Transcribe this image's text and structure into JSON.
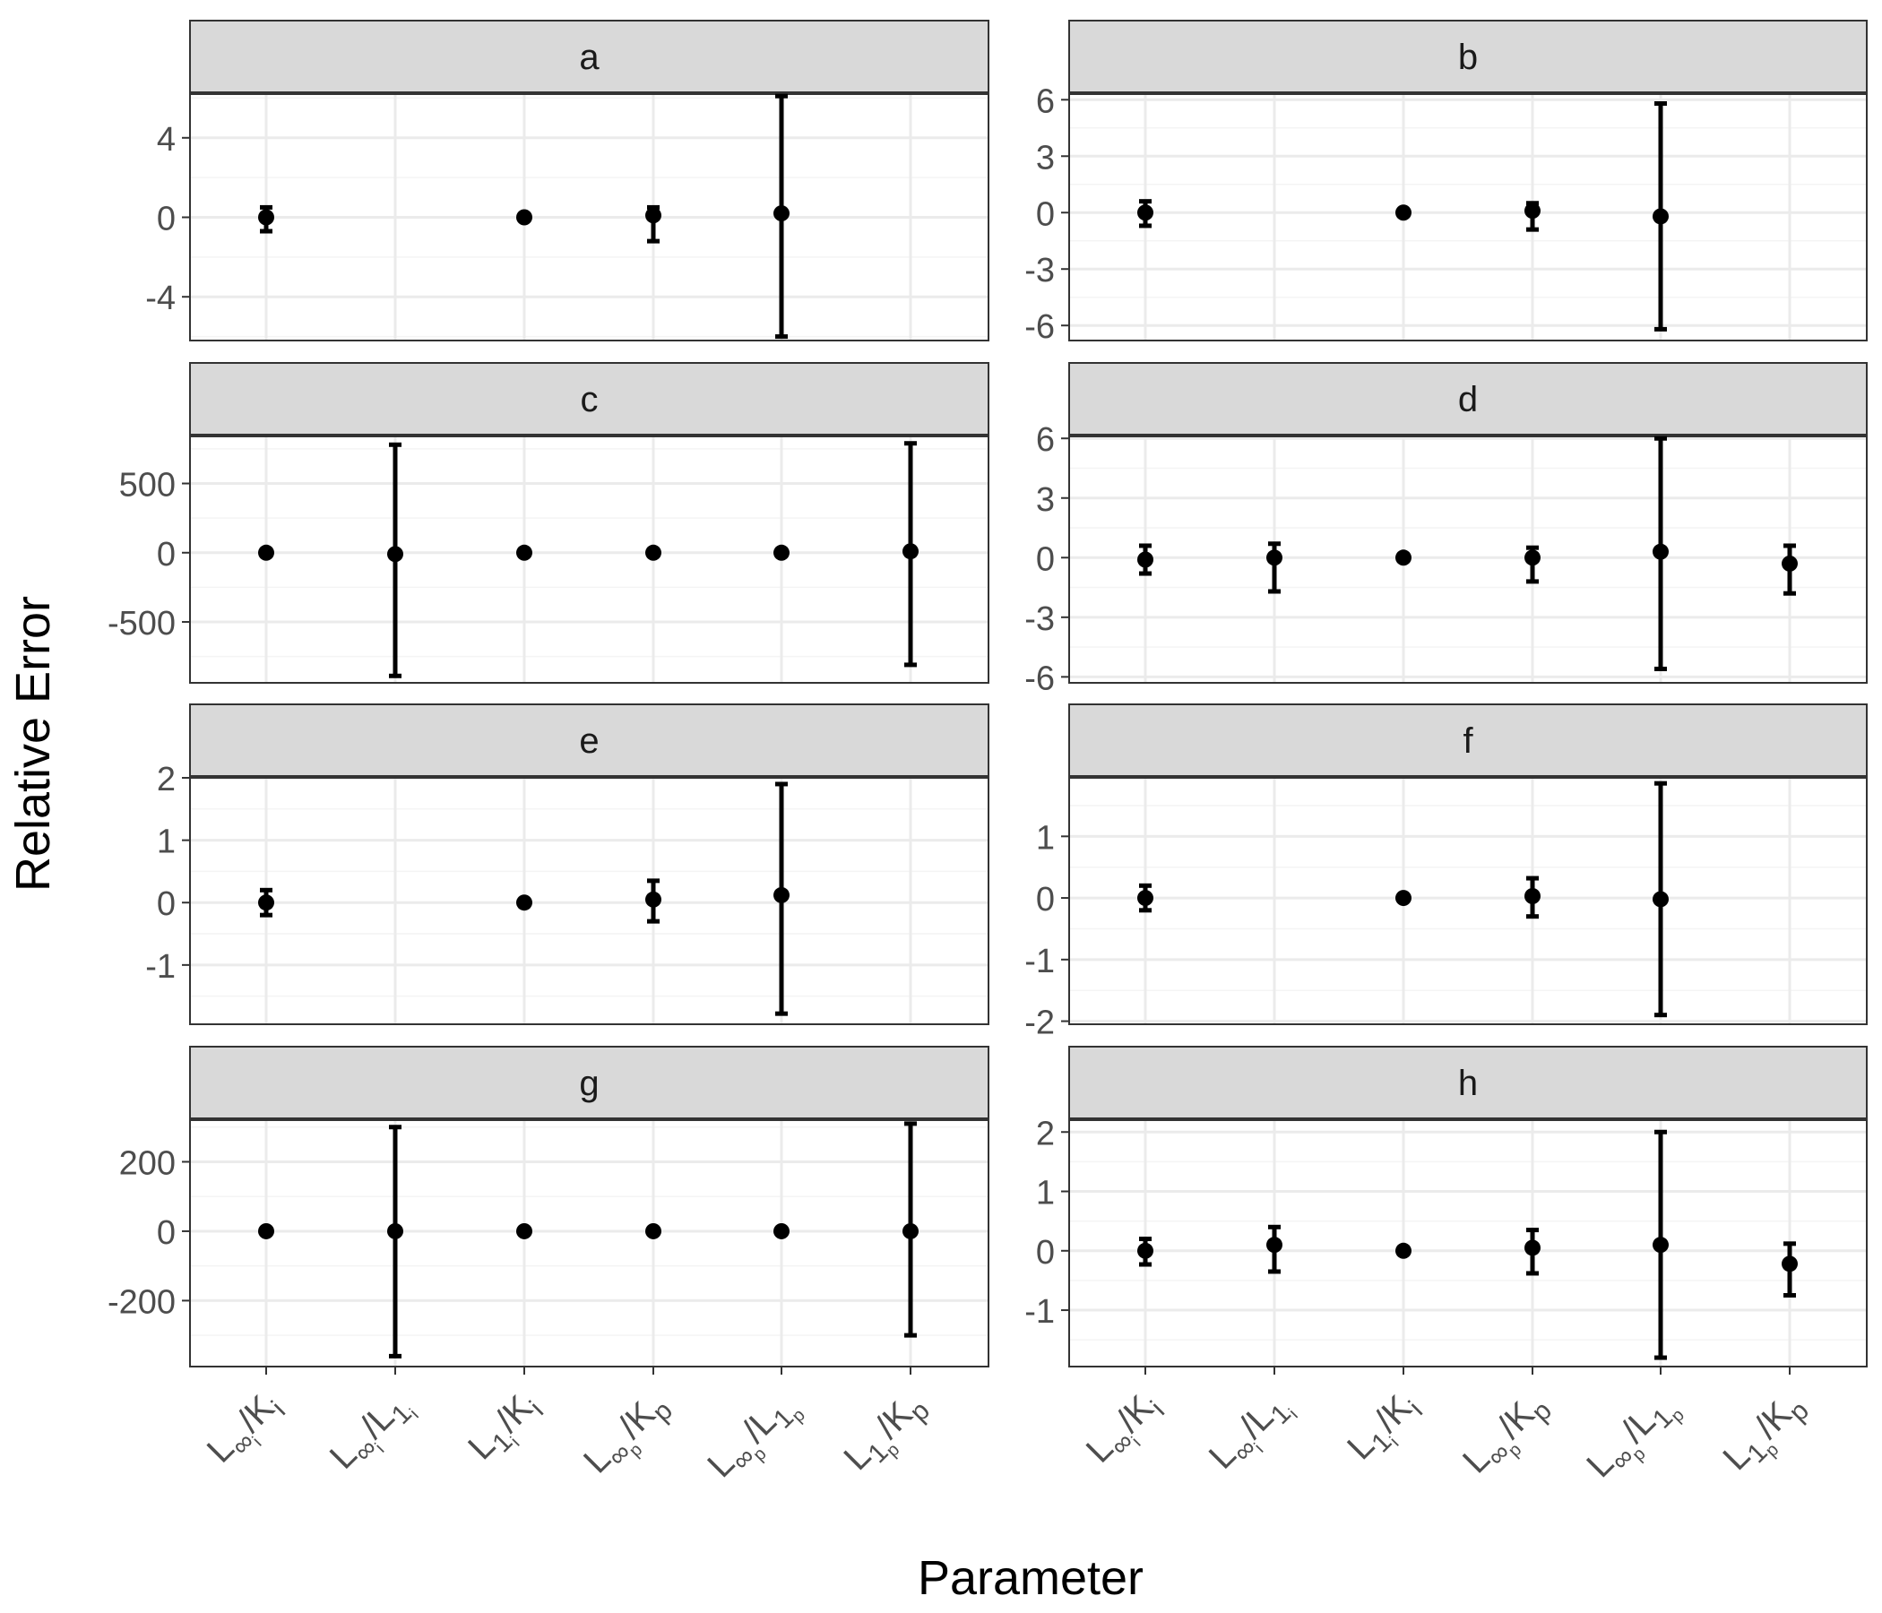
{
  "figure": {
    "ylabel": "Relative Error",
    "xlabel": "Parameter"
  },
  "chart_data": {
    "type": "scatter",
    "style": "point-with-errorbars, faceted 4x2",
    "xlabel": "Parameter",
    "ylabel": "Relative Error",
    "categories": [
      {
        "base": "L",
        "sub": "∞",
        "subsub": "i",
        "den": "K",
        "densub": "i"
      },
      {
        "base": "L",
        "sub": "∞",
        "subsub": "i",
        "den": "L",
        "densub": "1",
        "densubsub": "i"
      },
      {
        "base": "L",
        "sub": "1",
        "subsub": "i",
        "den": "K",
        "densub": "i"
      },
      {
        "base": "L",
        "sub": "∞",
        "subsub": "p",
        "den": "K",
        "densub": "p"
      },
      {
        "base": "L",
        "sub": "∞",
        "subsub": "p",
        "den": "L",
        "densub": "1",
        "densubsub": "p"
      },
      {
        "base": "L",
        "sub": "1",
        "subsub": "p",
        "den": "K",
        "densub": "p"
      }
    ],
    "panels": [
      {
        "label": "a",
        "ylim": [
          -6.2,
          6.2
        ],
        "yticks": [
          4,
          0,
          -4
        ],
        "tick_labels": [
          "4",
          "0",
          "-4"
        ],
        "minor": [
          6,
          2,
          -2,
          -6
        ],
        "points": [
          {
            "x": 0,
            "y": 0.0,
            "lo": -0.7,
            "hi": 0.5
          },
          {
            "x": 2,
            "y": 0.0
          },
          {
            "x": 3,
            "y": 0.1,
            "lo": -1.2,
            "hi": 0.5
          },
          {
            "x": 4,
            "y": 0.2,
            "lo": -6.0,
            "hi": 6.1
          }
        ]
      },
      {
        "label": "b",
        "ylim": [
          -6.8,
          6.3
        ],
        "yticks": [
          6,
          3,
          0,
          -3,
          -6
        ],
        "tick_labels": [
          "6",
          "3",
          "0",
          "-3",
          "-6"
        ],
        "minor": [
          4.5,
          1.5,
          -1.5,
          -4.5
        ],
        "points": [
          {
            "x": 0,
            "y": 0.0,
            "lo": -0.7,
            "hi": 0.6
          },
          {
            "x": 2,
            "y": 0.0
          },
          {
            "x": 3,
            "y": 0.1,
            "lo": -0.9,
            "hi": 0.5
          },
          {
            "x": 4,
            "y": -0.2,
            "lo": -6.2,
            "hi": 5.8
          }
        ]
      },
      {
        "label": "c",
        "ylim": [
          -940,
          840
        ],
        "yticks": [
          500,
          0,
          -500
        ],
        "tick_labels": [
          "500",
          "0",
          "-500"
        ],
        "minor": [
          750,
          250,
          -250,
          -750
        ],
        "points": [
          {
            "x": 0,
            "y": 0
          },
          {
            "x": 1,
            "y": -10,
            "lo": -890,
            "hi": 780
          },
          {
            "x": 2,
            "y": 0
          },
          {
            "x": 3,
            "y": 0
          },
          {
            "x": 4,
            "y": 0
          },
          {
            "x": 5,
            "y": 10,
            "lo": -810,
            "hi": 790
          }
        ]
      },
      {
        "label": "d",
        "ylim": [
          -6.3,
          6.1
        ],
        "yticks": [
          6,
          3,
          0,
          -3,
          -6
        ],
        "tick_labels": [
          "6",
          "3",
          "0",
          "-3",
          "-6"
        ],
        "minor": [
          4.5,
          1.5,
          -1.5,
          -4.5
        ],
        "points": [
          {
            "x": 0,
            "y": -0.1,
            "lo": -0.8,
            "hi": 0.6
          },
          {
            "x": 1,
            "y": 0.0,
            "lo": -1.7,
            "hi": 0.7
          },
          {
            "x": 2,
            "y": 0.0
          },
          {
            "x": 3,
            "y": 0.0,
            "lo": -1.2,
            "hi": 0.5
          },
          {
            "x": 4,
            "y": 0.3,
            "lo": -5.6,
            "hi": 6.0
          },
          {
            "x": 5,
            "y": -0.3,
            "lo": -1.8,
            "hi": 0.6
          }
        ]
      },
      {
        "label": "e",
        "ylim": [
          -1.95,
          2.0
        ],
        "yticks": [
          2,
          1,
          0,
          -1
        ],
        "tick_labels": [
          "2",
          "1",
          "0",
          "-1"
        ],
        "minor": [
          1.5,
          0.5,
          -0.5,
          -1.5
        ],
        "points": [
          {
            "x": 0,
            "y": 0.0,
            "lo": -0.2,
            "hi": 0.2
          },
          {
            "x": 2,
            "y": 0.0
          },
          {
            "x": 3,
            "y": 0.05,
            "lo": -0.3,
            "hi": 0.35
          },
          {
            "x": 4,
            "y": 0.12,
            "lo": -1.78,
            "hi": 1.9
          }
        ]
      },
      {
        "label": "f",
        "ylim": [
          -2.05,
          1.95
        ],
        "yticks": [
          1,
          0,
          -1,
          -2
        ],
        "tick_labels": [
          "1",
          "0",
          "-1",
          "-2"
        ],
        "minor": [
          1.5,
          0.5,
          -0.5,
          -1.5
        ],
        "points": [
          {
            "x": 0,
            "y": 0.0,
            "lo": -0.2,
            "hi": 0.2
          },
          {
            "x": 2,
            "y": 0.0
          },
          {
            "x": 3,
            "y": 0.03,
            "lo": -0.3,
            "hi": 0.32
          },
          {
            "x": 4,
            "y": -0.02,
            "lo": -1.9,
            "hi": 1.86
          }
        ]
      },
      {
        "label": "g",
        "ylim": [
          -390,
          320
        ],
        "yticks": [
          200,
          0,
          -200
        ],
        "tick_labels": [
          "200",
          "0",
          "-200"
        ],
        "minor": [
          300,
          100,
          -100,
          -300
        ],
        "points": [
          {
            "x": 0,
            "y": 0
          },
          {
            "x": 1,
            "y": 0,
            "lo": -360,
            "hi": 300
          },
          {
            "x": 2,
            "y": 0
          },
          {
            "x": 3,
            "y": 0
          },
          {
            "x": 4,
            "y": 0
          },
          {
            "x": 5,
            "y": 0,
            "lo": -300,
            "hi": 310
          }
        ]
      },
      {
        "label": "h",
        "ylim": [
          -1.95,
          2.2
        ],
        "yticks": [
          2,
          1,
          0,
          -1
        ],
        "tick_labels": [
          "2",
          "1",
          "0",
          "-1"
        ],
        "minor": [
          1.5,
          0.5,
          -0.5,
          -1.5
        ],
        "points": [
          {
            "x": 0,
            "y": 0.0,
            "lo": -0.23,
            "hi": 0.2
          },
          {
            "x": 1,
            "y": 0.1,
            "lo": -0.35,
            "hi": 0.4
          },
          {
            "x": 2,
            "y": 0.0
          },
          {
            "x": 3,
            "y": 0.05,
            "lo": -0.38,
            "hi": 0.35
          },
          {
            "x": 4,
            "y": 0.1,
            "lo": -1.8,
            "hi": 2.0
          },
          {
            "x": 5,
            "y": -0.22,
            "lo": -0.75,
            "hi": 0.12
          }
        ]
      }
    ]
  },
  "colors": {
    "strip_bg": "#d9d9d9",
    "panel_border": "#333333",
    "grid_major": "#ebebeb",
    "grid_minor": "#f4f4f4",
    "point": "#000000",
    "tick_text": "#4d4d4d"
  }
}
